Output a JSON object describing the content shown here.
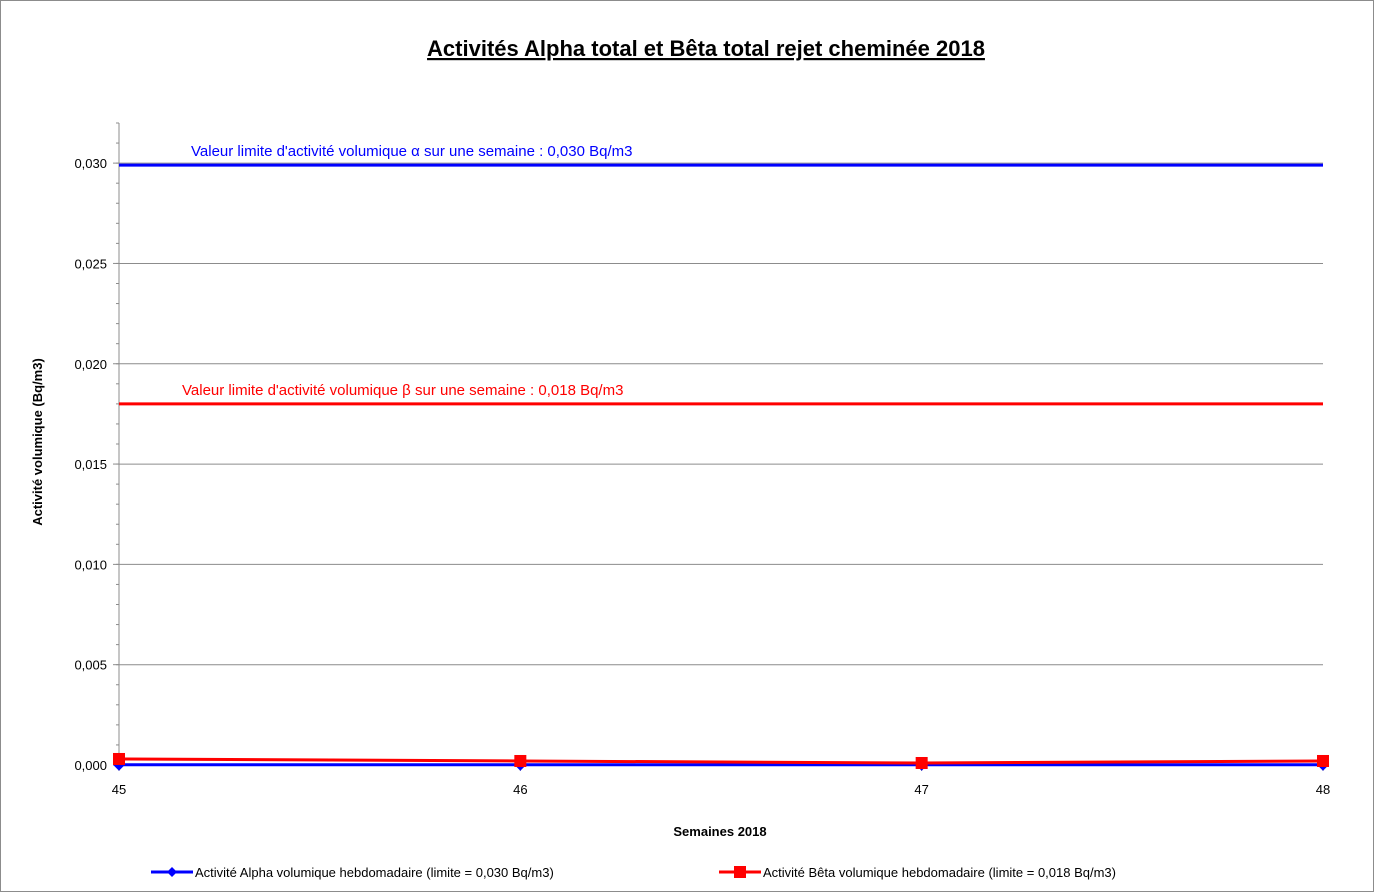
{
  "chart_data": {
    "type": "line",
    "title": "Activités Alpha total et Bêta total rejet cheminée 2018",
    "xlabel": "Semaines 2018",
    "ylabel": "Activité volumique (Bq/m3)",
    "x": [
      45,
      46,
      47,
      48
    ],
    "x_tick_labels": [
      "45",
      "46",
      "47",
      "48"
    ],
    "ylim": [
      0,
      0.032
    ],
    "y_ticks": [
      0,
      0.005,
      0.01,
      0.015,
      0.02,
      0.025,
      0.03
    ],
    "y_tick_labels": [
      "0,000",
      "0,005",
      "0,010",
      "0,015",
      "0,020",
      "0,025",
      "0,030"
    ],
    "grid": "horizontal",
    "legend_position": "bottom",
    "series": [
      {
        "name": "Activité Alpha volumique hebdomadaire (limite = 0,030 Bq/m3)",
        "values": [
          1e-05,
          1e-05,
          1e-05,
          1e-05
        ],
        "color": "#0000ff",
        "marker": "diamond"
      },
      {
        "name": "Activité Bêta volumique hebdomadaire (limite = 0,018 Bq/m3)",
        "values": [
          0.0003,
          0.0002,
          0.0001,
          0.0002
        ],
        "color": "#ff0000",
        "marker": "square"
      }
    ],
    "reference_lines": [
      {
        "value": 0.0299,
        "color": "#0000ff",
        "label": "Valeur limite d'activité volumique α sur une semaine : 0,030 Bq/m3"
      },
      {
        "value": 0.018,
        "color": "#ff0000",
        "label": "Valeur limite d'activité volumique β sur une semaine : 0,018 Bq/m3"
      }
    ]
  }
}
